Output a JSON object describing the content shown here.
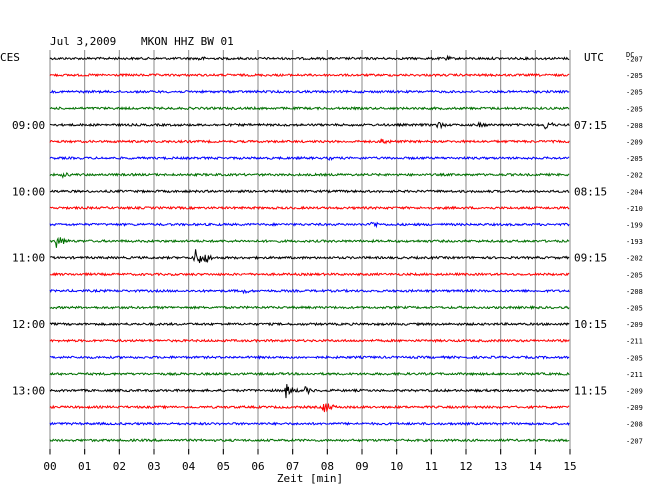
{
  "header": {
    "date": "Jul 3,2009",
    "station": "MKON HHZ BW 01",
    "left_zone": "CES",
    "right_zone": "UTC",
    "dc_label": "DC"
  },
  "chart_data": {
    "type": "line",
    "title": "Jul 3,2009   MKON HHZ BW 01",
    "xlabel": "Zeit [min]",
    "x_ticks": [
      "00",
      "01",
      "02",
      "03",
      "04",
      "05",
      "06",
      "07",
      "08",
      "09",
      "10",
      "11",
      "12",
      "13",
      "14",
      "15"
    ],
    "xlim": [
      0,
      15
    ],
    "grid": true,
    "trace_colors": [
      "#000000",
      "#ff0000",
      "#0000ff",
      "#007000"
    ],
    "left_time_labels": [
      {
        "trace": 4,
        "text": "09:00"
      },
      {
        "trace": 8,
        "text": "10:00"
      },
      {
        "trace": 12,
        "text": "11:00"
      },
      {
        "trace": 16,
        "text": "12:00"
      },
      {
        "trace": 20,
        "text": "13:00"
      }
    ],
    "right_time_labels": [
      {
        "trace": 4,
        "text": "07:15"
      },
      {
        "trace": 8,
        "text": "08:15"
      },
      {
        "trace": 12,
        "text": "09:15"
      },
      {
        "trace": 16,
        "text": "10:15"
      },
      {
        "trace": 20,
        "text": "11:15"
      }
    ],
    "dc_values": [
      "-207",
      "-205",
      "-205",
      "-205",
      "-208",
      "-209",
      "-205",
      "-202",
      "-204",
      "-210",
      "-199",
      "-193",
      "-202",
      "-205",
      "-208",
      "-205",
      "-209",
      "-211",
      "-205",
      "-211",
      "-209",
      "-209",
      "-208",
      "-207"
    ],
    "events": [
      {
        "trace": 0,
        "min": 4.3,
        "amp": 3
      },
      {
        "trace": 0,
        "min": 11.4,
        "amp": 3
      },
      {
        "trace": 4,
        "min": 11.2,
        "amp": 4
      },
      {
        "trace": 4,
        "min": 12.4,
        "amp": 3
      },
      {
        "trace": 4,
        "min": 14.3,
        "amp": 5
      },
      {
        "trace": 5,
        "min": 9.6,
        "amp": 4
      },
      {
        "trace": 6,
        "min": 8.1,
        "amp": 2
      },
      {
        "trace": 7,
        "min": 0.4,
        "amp": 3
      },
      {
        "trace": 10,
        "min": 9.3,
        "amp": 4
      },
      {
        "trace": 11,
        "min": 0.2,
        "amp": 7
      },
      {
        "trace": 12,
        "min": 4.2,
        "amp": 10
      },
      {
        "trace": 12,
        "min": 4.5,
        "amp": 5
      },
      {
        "trace": 14,
        "min": 5.6,
        "amp": 3
      },
      {
        "trace": 20,
        "min": 6.8,
        "amp": 8
      },
      {
        "trace": 20,
        "min": 7.4,
        "amp": 4
      },
      {
        "trace": 21,
        "min": 7.9,
        "amp": 7
      }
    ]
  }
}
